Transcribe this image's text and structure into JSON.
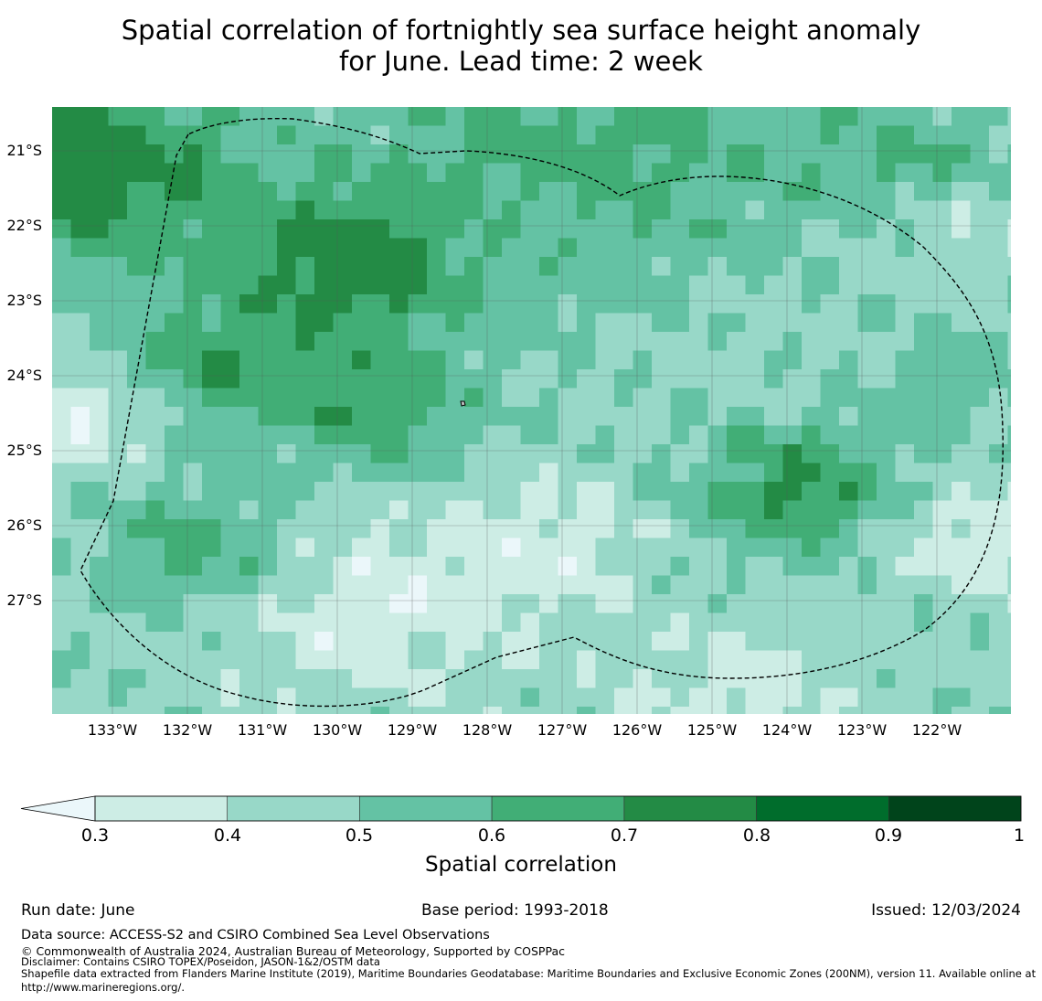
{
  "title": {
    "line1": "Spatial correlation of fortnightly sea surface height anomaly",
    "line2": "for June. Lead time: 2 week"
  },
  "map": {
    "lon_range": [
      -133.8,
      -121.0
    ],
    "lat_range": [
      -28.5,
      -20.4
    ],
    "lat_labels": [
      "21°S",
      "22°S",
      "23°S",
      "24°S",
      "25°S",
      "26°S",
      "27°S"
    ],
    "lon_labels": [
      "133°W",
      "132°W",
      "131°W",
      "130°W",
      "129°W",
      "128°W",
      "127°W",
      "126°W",
      "125°W",
      "124°W",
      "123°W",
      "122°W"
    ],
    "gridlines": true,
    "eez_boundary": "dashed",
    "field_description_bands": "correlation bins 0.3-1.0"
  },
  "colorbar": {
    "label": "Spatial correlation",
    "ticks": [
      "0.3",
      "0.4",
      "0.5",
      "0.6",
      "0.7",
      "0.8",
      "0.9",
      "1"
    ],
    "under_color": "#ebf7fa",
    "colors": [
      "#cdede5",
      "#98d8c8",
      "#64c2a4",
      "#41ae76",
      "#238b45",
      "#006d2c",
      "#00441b"
    ],
    "extend": "min"
  },
  "meta": {
    "run_date": "Run date: June",
    "base_period": "Base period: 1993-2018",
    "issued": "Issued: 12/03/2024"
  },
  "footer": {
    "source": "Data source: ACCESS-S2 and CSIRO Combined Sea Level Observations",
    "copyright": "© Commonwealth of Australia 2024, Australian Bureau of Meteorology, Supported by COSPPac",
    "disclaimer": "Disclaimer: Contains CSIRO TOPEX/Poseidon, JASON-1&2/OSTM data",
    "shapefile": "Shapefile data extracted from Flanders Marine Institute (2019), Maritime Boundaries Geodatabase: Maritime Boundaries and Exclusive Economic Zones (200NM), version 11. Available online at http://www.marineregions.org/."
  }
}
